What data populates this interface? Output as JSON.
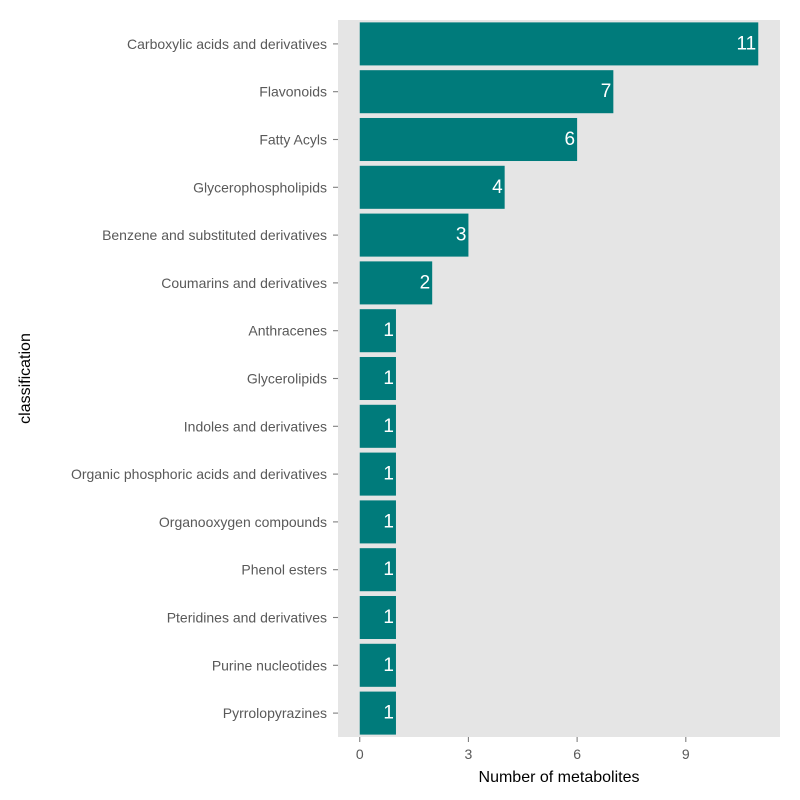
{
  "chart_data": {
    "type": "bar",
    "orientation": "horizontal",
    "categories": [
      "Carboxylic acids and derivatives",
      "Flavonoids",
      "Fatty Acyls",
      "Glycerophospholipids",
      "Benzene and substituted derivatives",
      "Coumarins and derivatives",
      "Anthracenes",
      "Glycerolipids",
      "Indoles and derivatives",
      "Organic phosphoric acids and derivatives",
      "Organooxygen compounds",
      "Phenol esters",
      "Pteridines and derivatives",
      "Purine nucleotides",
      "Pyrrolopyrazines"
    ],
    "values": [
      11,
      7,
      6,
      4,
      3,
      2,
      1,
      1,
      1,
      1,
      1,
      1,
      1,
      1,
      1
    ],
    "data_labels": [
      "11",
      "7",
      "6",
      "4",
      "3",
      "2",
      "1",
      "1",
      "1",
      "1",
      "1",
      "1",
      "1",
      "1",
      "1"
    ],
    "xlabel": "Number of metabolites",
    "ylabel": "classification",
    "xticks": [
      0,
      3,
      6,
      9
    ],
    "xtick_labels": [
      "0",
      "3",
      "6",
      "9"
    ],
    "xlim": [
      -0.6,
      11.6
    ],
    "grid": false,
    "legend": "none",
    "colors": {
      "bar": "#007b7b",
      "panel": "#e5e5e5",
      "bar_label": "#ffffff",
      "tick_text": "#595959"
    }
  }
}
